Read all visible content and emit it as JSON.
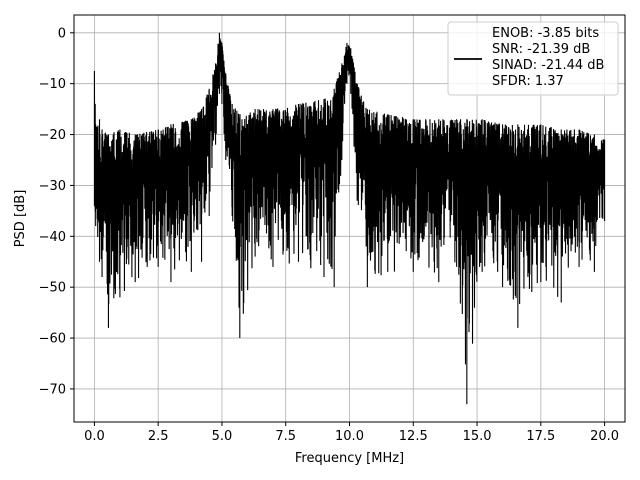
{
  "chart_data": {
    "type": "line",
    "xlabel": "Frequency [MHz]",
    "ylabel": "PSD [dB]",
    "xlim": [
      -0.8,
      20.8
    ],
    "ylim": [
      -76.5,
      3.5
    ],
    "xticks": [
      0.0,
      2.5,
      5.0,
      7.5,
      10.0,
      12.5,
      15.0,
      17.5,
      20.0
    ],
    "xtick_labels": [
      "0.0",
      "2.5",
      "5.0",
      "7.5",
      "10.0",
      "12.5",
      "15.0",
      "17.5",
      "20.0"
    ],
    "yticks": [
      0,
      -10,
      -20,
      -30,
      -40,
      -50,
      -60,
      -70
    ],
    "ytick_labels": [
      "0",
      "−10",
      "−20",
      "−30",
      "−40",
      "−50",
      "−60",
      "−70"
    ],
    "grid": true,
    "legend_position": "top-right",
    "line_color": "#000000",
    "series": [
      {
        "legend_lines": [
          "ENOB: -3.85 bits",
          "SNR: -21.39 dB",
          "SINAD: -21.44 dB",
          "SFDR: 1.37"
        ],
        "color": "#000000",
        "envelope": [
          {
            "x": 0.0,
            "y_max": -7.5,
            "y_min": -34
          },
          {
            "x": 0.05,
            "y_max": -18,
            "y_min": -38
          },
          {
            "x": 0.2,
            "y_max": -17,
            "y_min": -45
          },
          {
            "x": 0.3,
            "y_max": -19,
            "y_min": -48
          },
          {
            "x": 0.55,
            "y_max": -20,
            "y_min": -58
          },
          {
            "x": 1.0,
            "y_max": -19,
            "y_min": -52
          },
          {
            "x": 1.6,
            "y_max": -20,
            "y_min": -49
          },
          {
            "x": 2.5,
            "y_max": -19,
            "y_min": -46
          },
          {
            "x": 3.0,
            "y_max": -18,
            "y_min": -49
          },
          {
            "x": 3.8,
            "y_max": -17,
            "y_min": -47
          },
          {
            "x": 4.2,
            "y_max": -15,
            "y_min": -45
          },
          {
            "x": 4.5,
            "y_max": -11,
            "y_min": -36
          },
          {
            "x": 4.75,
            "y_max": -6,
            "y_min": -22
          },
          {
            "x": 4.9,
            "y_max": 0,
            "y_min": -12
          },
          {
            "x": 5.0,
            "y_max": -2,
            "y_min": -14
          },
          {
            "x": 5.15,
            "y_max": -8,
            "y_min": -25
          },
          {
            "x": 5.4,
            "y_max": -14,
            "y_min": -36
          },
          {
            "x": 5.7,
            "y_max": -16,
            "y_min": -60
          },
          {
            "x": 6.3,
            "y_max": -15,
            "y_min": -44
          },
          {
            "x": 7.0,
            "y_max": -15,
            "y_min": -46
          },
          {
            "x": 8.0,
            "y_max": -14,
            "y_min": -45
          },
          {
            "x": 9.0,
            "y_max": -13,
            "y_min": -48
          },
          {
            "x": 9.4,
            "y_max": -11,
            "y_min": -50
          },
          {
            "x": 9.7,
            "y_max": -6,
            "y_min": -25
          },
          {
            "x": 9.9,
            "y_max": -2,
            "y_min": -10
          },
          {
            "x": 10.05,
            "y_max": -3,
            "y_min": -12
          },
          {
            "x": 10.3,
            "y_max": -10,
            "y_min": -33
          },
          {
            "x": 10.7,
            "y_max": -15,
            "y_min": -50
          },
          {
            "x": 11.5,
            "y_max": -16,
            "y_min": -47
          },
          {
            "x": 12.5,
            "y_max": -17,
            "y_min": -47
          },
          {
            "x": 13.5,
            "y_max": -17,
            "y_min": -49
          },
          {
            "x": 14.2,
            "y_max": -17,
            "y_min": -46
          },
          {
            "x": 14.6,
            "y_max": -17,
            "y_min": -73
          },
          {
            "x": 15.2,
            "y_max": -17,
            "y_min": -47
          },
          {
            "x": 16.0,
            "y_max": -18,
            "y_min": -50
          },
          {
            "x": 16.6,
            "y_max": -18,
            "y_min": -58
          },
          {
            "x": 17.5,
            "y_max": -18,
            "y_min": -49
          },
          {
            "x": 18.3,
            "y_max": -19,
            "y_min": -53
          },
          {
            "x": 19.0,
            "y_max": -19,
            "y_min": -46
          },
          {
            "x": 19.6,
            "y_max": -20,
            "y_min": -47
          },
          {
            "x": 20.0,
            "y_max": -21,
            "y_min": -37
          }
        ]
      }
    ]
  }
}
